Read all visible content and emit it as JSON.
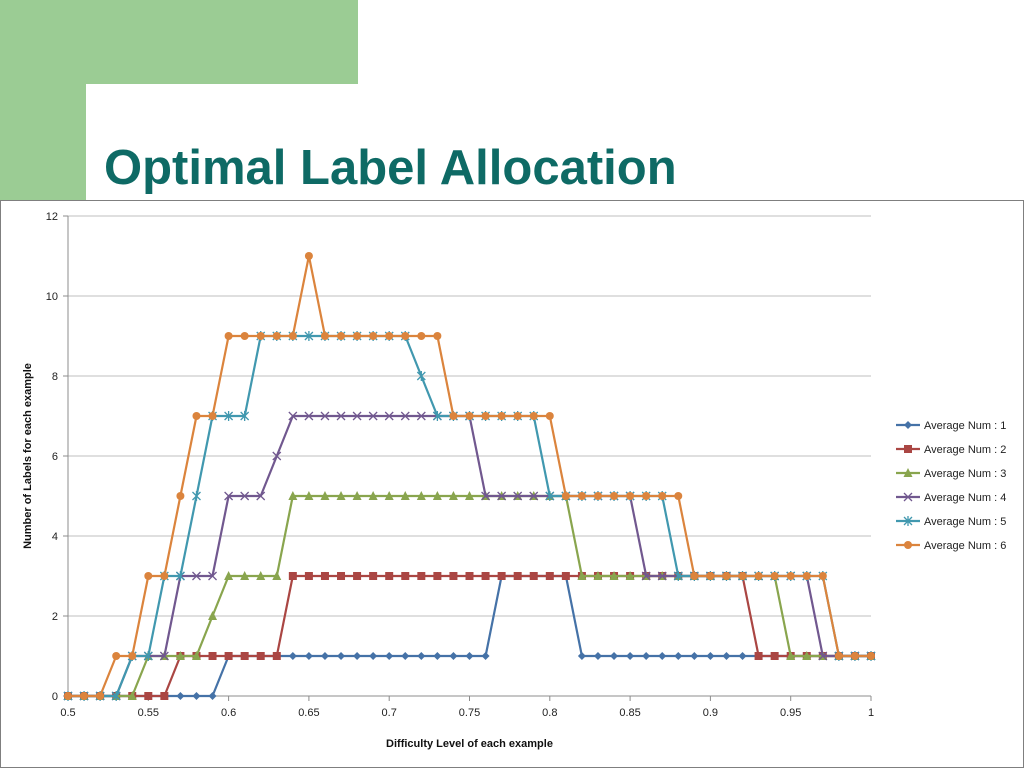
{
  "slide": {
    "title": "Optimal Label Allocation"
  },
  "chart_data": {
    "type": "line",
    "title": "",
    "xlabel": "Difficulty Level of each example",
    "ylabel": "Number of Labels for each example",
    "xlim": [
      0.5,
      1
    ],
    "ylim": [
      0,
      12
    ],
    "xticks": [
      "0.5",
      "0.55",
      "0.6",
      "0.65",
      "0.7",
      "0.75",
      "0.8",
      "0.85",
      "0.9",
      "0.95",
      "1"
    ],
    "yticks": [
      "0",
      "2",
      "4",
      "6",
      "8",
      "10",
      "12"
    ],
    "grid": "horizontal",
    "legend_position": "right",
    "x": [
      0.5,
      0.51,
      0.52,
      0.53,
      0.54,
      0.55,
      0.56,
      0.57,
      0.58,
      0.59,
      0.6,
      0.61,
      0.62,
      0.63,
      0.64,
      0.65,
      0.66,
      0.67,
      0.68,
      0.69,
      0.7,
      0.71,
      0.72,
      0.73,
      0.74,
      0.75,
      0.76,
      0.77,
      0.78,
      0.79,
      0.8,
      0.81,
      0.82,
      0.83,
      0.84,
      0.85,
      0.86,
      0.87,
      0.88,
      0.89,
      0.9,
      0.91,
      0.92,
      0.93,
      0.94,
      0.95,
      0.96,
      0.97,
      0.98,
      0.99,
      1.0
    ],
    "series": [
      {
        "name": "Average Num : 1",
        "color": "#4572a7",
        "marker": "diamond",
        "values": [
          0,
          0,
          0,
          0,
          0,
          0,
          0,
          0,
          0,
          0,
          1,
          1,
          1,
          1,
          1,
          1,
          1,
          1,
          1,
          1,
          1,
          1,
          1,
          1,
          1,
          1,
          1,
          3,
          3,
          3,
          3,
          3,
          1,
          1,
          1,
          1,
          1,
          1,
          1,
          1,
          1,
          1,
          1,
          1,
          1,
          1,
          1,
          1,
          1,
          1,
          1
        ]
      },
      {
        "name": "Average Num : 2",
        "color": "#aa4643",
        "marker": "square",
        "values": [
          0,
          0,
          0,
          0,
          0,
          0,
          0,
          1,
          1,
          1,
          1,
          1,
          1,
          1,
          3,
          3,
          3,
          3,
          3,
          3,
          3,
          3,
          3,
          3,
          3,
          3,
          3,
          3,
          3,
          3,
          3,
          3,
          3,
          3,
          3,
          3,
          3,
          3,
          3,
          3,
          3,
          3,
          3,
          1,
          1,
          1,
          1,
          1,
          1,
          1,
          1
        ]
      },
      {
        "name": "Average Num : 3",
        "color": "#89a54e",
        "marker": "triangle",
        "values": [
          0,
          0,
          0,
          0,
          0,
          1,
          1,
          1,
          1,
          2,
          3,
          3,
          3,
          3,
          5,
          5,
          5,
          5,
          5,
          5,
          5,
          5,
          5,
          5,
          5,
          5,
          5,
          5,
          5,
          5,
          5,
          5,
          3,
          3,
          3,
          3,
          3,
          3,
          3,
          3,
          3,
          3,
          3,
          3,
          3,
          1,
          1,
          1,
          1,
          1,
          1
        ]
      },
      {
        "name": "Average Num : 4",
        "color": "#71588f",
        "marker": "x",
        "values": [
          0,
          0,
          0,
          0,
          1,
          1,
          1,
          3,
          3,
          3,
          5,
          5,
          5,
          6,
          7,
          7,
          7,
          7,
          7,
          7,
          7,
          7,
          7,
          7,
          7,
          7,
          5,
          5,
          5,
          5,
          5,
          5,
          5,
          5,
          5,
          5,
          3,
          3,
          3,
          3,
          3,
          3,
          3,
          3,
          3,
          3,
          3,
          1,
          1,
          1,
          1
        ]
      },
      {
        "name": "Average Num : 5",
        "color": "#4198af",
        "marker": "star",
        "values": [
          0,
          0,
          0,
          0,
          1,
          1,
          3,
          3,
          5,
          7,
          7,
          7,
          9,
          9,
          9,
          9,
          9,
          9,
          9,
          9,
          9,
          9,
          8,
          7,
          7,
          7,
          7,
          7,
          7,
          7,
          5,
          5,
          5,
          5,
          5,
          5,
          5,
          5,
          3,
          3,
          3,
          3,
          3,
          3,
          3,
          3,
          3,
          3,
          1,
          1,
          1
        ]
      },
      {
        "name": "Average Num : 6",
        "color": "#db843d",
        "marker": "circle",
        "values": [
          0,
          0,
          0,
          1,
          1,
          3,
          3,
          5,
          7,
          7,
          9,
          9,
          9,
          9,
          9,
          11,
          9,
          9,
          9,
          9,
          9,
          9,
          9,
          9,
          7,
          7,
          7,
          7,
          7,
          7,
          7,
          5,
          5,
          5,
          5,
          5,
          5,
          5,
          5,
          3,
          3,
          3,
          3,
          3,
          3,
          3,
          3,
          3,
          1,
          1,
          1
        ]
      }
    ]
  }
}
